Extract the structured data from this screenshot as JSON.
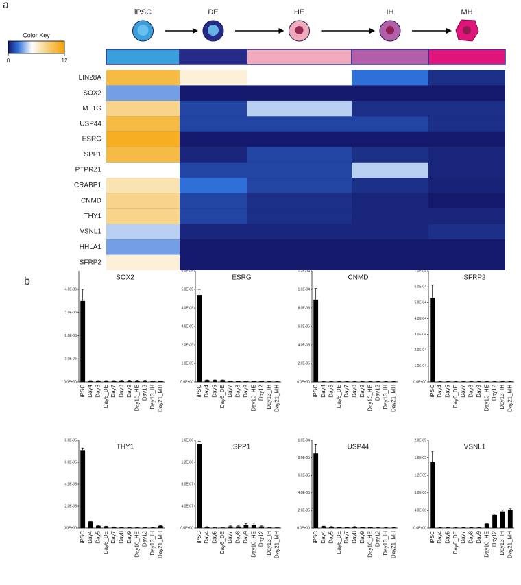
{
  "chart_data": [
    {
      "type": "heatmap",
      "panel_label": "a",
      "stages": [
        "iPSC",
        "DE",
        "HE",
        "IH",
        "MH"
      ],
      "stage_colors": [
        "#3aa0dc",
        "#262b8a",
        "#f2aabd",
        "#b35ea8",
        "#e0157c"
      ],
      "rows": [
        "LIN28A",
        "SOX2",
        "MT1G",
        "USP44",
        "ESRG",
        "SPP1",
        "PTPRZ1",
        "CRABP1",
        "CNMD",
        "THY1",
        "VSNL1",
        "HHLA1",
        "SFRP2"
      ],
      "values": [
        [
          10,
          6,
          5,
          2,
          0.5
        ],
        [
          3,
          0,
          0,
          0,
          0
        ],
        [
          8,
          1,
          4,
          0.5,
          0.5
        ],
        [
          10,
          1,
          1,
          1,
          0.5
        ],
        [
          11,
          0,
          0,
          0,
          0
        ],
        [
          10,
          0.3,
          1,
          0.5,
          0.3
        ],
        [
          5,
          1,
          1,
          4,
          0.3
        ],
        [
          7,
          2,
          1,
          0.5,
          0.2
        ],
        [
          8,
          1,
          0.5,
          0.3,
          0
        ],
        [
          8,
          1,
          0.5,
          0.3,
          0.3
        ],
        [
          4,
          0.3,
          0.3,
          0.3,
          0.5
        ],
        [
          3,
          0,
          0,
          0,
          0
        ],
        [
          6,
          0,
          0,
          0,
          0
        ]
      ],
      "colorbar_title": "Color Key",
      "colorbar_lim": [
        0,
        12
      ],
      "colorbar_ticks": [
        0,
        12
      ]
    },
    {
      "type": "bar",
      "panel_label": "b",
      "title": "SOX2",
      "color": "#000000",
      "categories": [
        "iPSC",
        "Day4",
        "Day5",
        "Day6_DE",
        "Day7",
        "Day8",
        "Day9",
        "Day10_HE",
        "Day12",
        "Day13_IH",
        "Day21_MH"
      ],
      "values": [
        3.5e-06,
        5e-08,
        5e-08,
        5e-08,
        5e-08,
        6e-08,
        6e-08,
        6e-08,
        6e-08,
        4e-08,
        4e-08
      ],
      "errors": [
        5e-07,
        1e-08,
        1e-08,
        1e-08,
        1e-08,
        1e-08,
        1e-08,
        1e-08,
        1e-08,
        1e-08,
        1e-08
      ],
      "ylim": [
        0,
        4.8e-06
      ],
      "yticks": [
        {
          "value": 0,
          "label": "0.0E+00"
        },
        {
          "value": 1e-06,
          "label": "1.0E-06"
        },
        {
          "value": 2e-06,
          "label": "2.0E-06"
        },
        {
          "value": 3e-06,
          "label": "3.0E-06"
        },
        {
          "value": 4e-06,
          "label": "4.0E-06"
        }
      ]
    },
    {
      "type": "bar",
      "title": "ESRG",
      "color": "#000000",
      "categories": [
        "iPSC",
        "Day4",
        "Day5",
        "Day6_DE",
        "Day7",
        "Day8",
        "Day9",
        "Day10_HE",
        "Day12",
        "Day13_IH",
        "Day21_MH"
      ],
      "values": [
        4.7e-05,
        1e-06,
        1e-06,
        1e-06,
        5e-07,
        5e-07,
        5e-07,
        5e-07,
        4e-07,
        3e-07,
        3e-07
      ],
      "errors": [
        3e-06,
        1e-07,
        1e-07,
        1e-07,
        1e-07,
        1e-07,
        1e-07,
        1e-07,
        1e-07,
        1e-07,
        1e-07
      ],
      "ylim": [
        0,
        6e-05
      ],
      "yticks": [
        {
          "value": 0,
          "label": "0.0E+00"
        },
        {
          "value": 1e-05,
          "label": "1.0E-05"
        },
        {
          "value": 2e-05,
          "label": "2.0E-05"
        },
        {
          "value": 3e-05,
          "label": "3.0E-05"
        },
        {
          "value": 4e-05,
          "label": "4.0E-05"
        },
        {
          "value": 5e-05,
          "label": "5.0E-05"
        },
        {
          "value": 6e-05,
          "label": "6.0E-05"
        }
      ]
    },
    {
      "type": "bar",
      "title": "CNMD",
      "color": "#000000",
      "categories": [
        "iPSC",
        "Day4",
        "Day5",
        "Day6_DE",
        "Day7",
        "Day8",
        "Day9",
        "Day10_HE",
        "Day12",
        "Day13_IH",
        "Day21_MH"
      ],
      "values": [
        8.9e-05,
        5e-07,
        5e-07,
        5e-07,
        5e-07,
        5e-07,
        5e-07,
        5e-07,
        5e-07,
        5e-07,
        5e-07
      ],
      "errors": [
        1.2e-05,
        1e-07,
        1e-07,
        1e-07,
        1e-07,
        1e-07,
        1e-07,
        1e-07,
        1e-07,
        1e-07,
        1e-07
      ],
      "ylim": [
        0,
        0.00012
      ],
      "yticks": [
        {
          "value": 0,
          "label": "0.0E+00"
        },
        {
          "value": 2e-05,
          "label": "2.0E-05"
        },
        {
          "value": 4e-05,
          "label": "4.0E-05"
        },
        {
          "value": 6e-05,
          "label": "6.0E-05"
        },
        {
          "value": 8e-05,
          "label": "8.0E-05"
        },
        {
          "value": 0.0001,
          "label": "1.0E-04"
        },
        {
          "value": 0.00012,
          "label": "1.2E-04"
        }
      ]
    },
    {
      "type": "bar",
      "title": "SFRP2",
      "color": "#000000",
      "categories": [
        "iPSC",
        "Day4",
        "Day5",
        "Day6_DE",
        "Day7",
        "Day8",
        "Day9",
        "Day10_HE",
        "Day12",
        "Day13_IH",
        "Day21_MH"
      ],
      "values": [
        0.00053,
        3e-06,
        3e-06,
        3e-06,
        3e-06,
        3e-06,
        3e-06,
        3e-06,
        3e-06,
        3e-06,
        3e-06
      ],
      "errors": [
        8e-05,
        1e-06,
        1e-06,
        1e-06,
        1e-06,
        1e-06,
        1e-06,
        1e-06,
        1e-06,
        1e-06,
        1e-06
      ],
      "ylim": [
        0,
        0.0007
      ],
      "yticks": [
        {
          "value": 0,
          "label": "0.0E+00"
        },
        {
          "value": 0.0001,
          "label": "1.0E-04"
        },
        {
          "value": 0.0002,
          "label": "2.0E-04"
        },
        {
          "value": 0.0003,
          "label": "3.0E-04"
        },
        {
          "value": 0.0004,
          "label": "4.0E-04"
        },
        {
          "value": 0.0005,
          "label": "5.0E-04"
        },
        {
          "value": 0.0006,
          "label": "6.0E-04"
        },
        {
          "value": 0.0007,
          "label": "7.0E-04"
        }
      ]
    },
    {
      "type": "bar",
      "title": "THY1",
      "color": "#000000",
      "categories": [
        "iPSC",
        "Day4",
        "Day5",
        "Day6_DE",
        "Day7",
        "Day8",
        "Day9",
        "Day10_HE",
        "Day12",
        "Day13_IH",
        "Day21_MH"
      ],
      "values": [
        7.1e-05,
        6e-06,
        2e-06,
        1.5e-06,
        1e-06,
        5e-07,
        5e-07,
        5e-07,
        5e-07,
        5e-07,
        2e-06
      ],
      "errors": [
        2e-06,
        3e-07,
        2e-07,
        2e-07,
        1e-07,
        1e-07,
        1e-07,
        1e-07,
        1e-07,
        1e-07,
        3e-07
      ],
      "ylim": [
        0,
        8e-05
      ],
      "yticks": [
        {
          "value": 0,
          "label": "0.0E+00"
        },
        {
          "value": 2e-05,
          "label": "2.0E-05"
        },
        {
          "value": 4e-05,
          "label": "4.0E-05"
        },
        {
          "value": 6e-05,
          "label": "6.0E-05"
        },
        {
          "value": 8e-05,
          "label": "8.0E-05"
        }
      ]
    },
    {
      "type": "bar",
      "title": "SPP1",
      "color": "#000000",
      "categories": [
        "iPSC",
        "Day4",
        "Day5",
        "Day6_DE",
        "Day7",
        "Day8",
        "Day9",
        "Day10_HE",
        "Day12",
        "Day13_IH",
        "Day21_MH"
      ],
      "values": [
        1.53e-06,
        2e-08,
        1e-08,
        1e-08,
        3e-08,
        3e-08,
        6e-08,
        6e-08,
        3e-08,
        1e-08,
        1e-08
      ],
      "errors": [
        5e-08,
        5e-09,
        5e-09,
        5e-09,
        1e-08,
        1e-08,
        2e-08,
        3e-08,
        1e-08,
        5e-09,
        5e-09
      ],
      "ylim": [
        0,
        1.6e-06
      ],
      "yticks": [
        {
          "value": 0,
          "label": "0.0E+00"
        },
        {
          "value": 4e-07,
          "label": "4.0E-07"
        },
        {
          "value": 8e-07,
          "label": "8.0E-07"
        },
        {
          "value": 1.2e-06,
          "label": "1.2E-06"
        },
        {
          "value": 1.6e-06,
          "label": "1.6E-06"
        }
      ]
    },
    {
      "type": "bar",
      "title": "USP44",
      "color": "#000000",
      "categories": [
        "iPSC",
        "Day4",
        "Day5",
        "Day6_DE",
        "Day7",
        "Day8",
        "Day9",
        "Day10_HE",
        "Day12",
        "Day13_IH",
        "Day21_MH"
      ],
      "values": [
        8.5e-05,
        2e-06,
        1.5e-06,
        1e-06,
        1e-06,
        1.5e-06,
        1e-06,
        1e-06,
        5e-07,
        5e-07,
        5e-07
      ],
      "errors": [
        1e-05,
        2e-07,
        2e-07,
        1e-07,
        1e-07,
        2e-07,
        1e-07,
        1e-07,
        1e-07,
        1e-07,
        1e-07
      ],
      "ylim": [
        0,
        0.0001
      ],
      "yticks": [
        {
          "value": 0,
          "label": "0.0E+00"
        },
        {
          "value": 2e-05,
          "label": "2.0E-05"
        },
        {
          "value": 4e-05,
          "label": "4.0E-05"
        },
        {
          "value": 6e-05,
          "label": "6.0E-05"
        },
        {
          "value": 8e-05,
          "label": "8.0E-05"
        },
        {
          "value": 0.0001,
          "label": "1.0E-04"
        }
      ]
    },
    {
      "type": "bar",
      "title": "VSNL1",
      "color": "#000000",
      "categories": [
        "iPSC",
        "Day4",
        "Day5",
        "Day6_DE",
        "Day7",
        "Day8",
        "Day9",
        "Day10_HE",
        "Day12",
        "Day13_IH",
        "Day21_MH"
      ],
      "values": [
        1.5e-05,
        1e-07,
        1e-07,
        1e-07,
        1e-07,
        1e-07,
        1e-07,
        1e-06,
        3e-06,
        3.8e-06,
        4.2e-06
      ],
      "errors": [
        2.5e-06,
        2e-08,
        2e-08,
        2e-08,
        2e-08,
        2e-08,
        2e-08,
        1e-07,
        2e-07,
        3e-07,
        2e-07
      ],
      "ylim": [
        0,
        2e-05
      ],
      "yticks": [
        {
          "value": 0,
          "label": "0.0E+00"
        },
        {
          "value": 4e-06,
          "label": "4.0E-06"
        },
        {
          "value": 8e-06,
          "label": "8.0E-06"
        },
        {
          "value": 1.2e-05,
          "label": "1.2E-05"
        },
        {
          "value": 1.6e-05,
          "label": "1.6E-05"
        },
        {
          "value": 2e-05,
          "label": "2.0E-05"
        }
      ]
    }
  ]
}
